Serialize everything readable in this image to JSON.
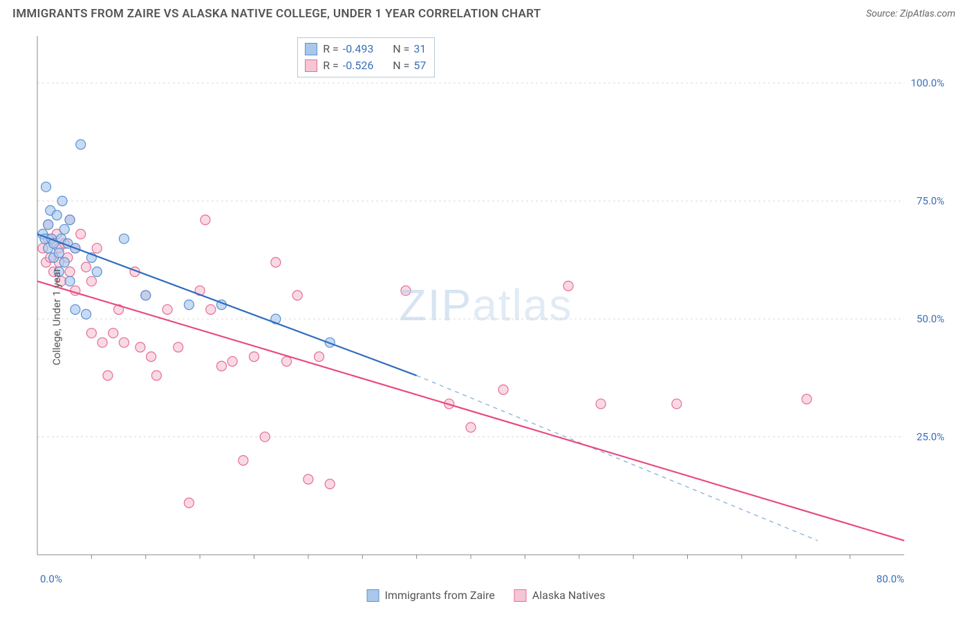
{
  "title": "IMMIGRANTS FROM ZAIRE VS ALASKA NATIVE COLLEGE, UNDER 1 YEAR CORRELATION CHART",
  "source": "Source: ZipAtlas.com",
  "watermark": "ZIPatlas",
  "ylabel": "College, Under 1 year",
  "chart": {
    "type": "scatter-with-regression",
    "background_color": "#ffffff",
    "grid_color": "#d9d9d9",
    "axis_color": "#888888",
    "xlim": [
      0,
      80
    ],
    "ylim": [
      0,
      110
    ],
    "y_ticks": [
      25,
      50,
      75,
      100
    ],
    "y_tick_labels": [
      "25.0%",
      "50.0%",
      "75.0%",
      "100.0%"
    ],
    "x_min_label": "0.0%",
    "x_max_label": "80.0%",
    "x_minor_ticks": [
      5,
      10,
      15,
      20,
      25,
      30,
      35,
      40,
      45,
      50,
      55,
      60,
      65,
      70,
      75
    ],
    "label_color": "#3b6fb6",
    "label_fontsize": 15,
    "marker_radius": 7,
    "marker_stroke_width": 1.2,
    "line_width": 2.2,
    "series": [
      {
        "name": "Immigrants from Zaire",
        "fill": "#a9c7eb",
        "stroke": "#5a8fd6",
        "line_color": "#2e6bc0",
        "dash_color": "#8fb3dd",
        "R": "-0.493",
        "N": "31",
        "points": [
          [
            0.5,
            68
          ],
          [
            0.7,
            67
          ],
          [
            0.8,
            78
          ],
          [
            1.0,
            70
          ],
          [
            1.0,
            65
          ],
          [
            1.2,
            73
          ],
          [
            1.3,
            67
          ],
          [
            1.5,
            66
          ],
          [
            1.5,
            63
          ],
          [
            1.8,
            72
          ],
          [
            2.0,
            64
          ],
          [
            2.0,
            60
          ],
          [
            2.2,
            67
          ],
          [
            2.3,
            75
          ],
          [
            2.5,
            62
          ],
          [
            2.5,
            69
          ],
          [
            2.8,
            66
          ],
          [
            3.0,
            58
          ],
          [
            3.0,
            71
          ],
          [
            3.5,
            65
          ],
          [
            3.5,
            52
          ],
          [
            4.0,
            87
          ],
          [
            4.5,
            51
          ],
          [
            5.0,
            63
          ],
          [
            5.5,
            60
          ],
          [
            8.0,
            67
          ],
          [
            10.0,
            55
          ],
          [
            14.0,
            53
          ],
          [
            17.0,
            53
          ],
          [
            22.0,
            50
          ],
          [
            27.0,
            45
          ]
        ],
        "reg_solid": {
          "x1": 0,
          "y1": 68,
          "x2": 35,
          "y2": 38
        },
        "reg_dash": {
          "x1": 35,
          "y1": 38,
          "x2": 72,
          "y2": 3
        }
      },
      {
        "name": "Alaska Natives",
        "fill": "#f6c6d4",
        "stroke": "#e76b94",
        "line_color": "#e84a7f",
        "R": "-0.526",
        "N": "57",
        "points": [
          [
            0.5,
            65
          ],
          [
            0.8,
            62
          ],
          [
            1.0,
            67
          ],
          [
            1.0,
            70
          ],
          [
            1.2,
            63
          ],
          [
            1.5,
            66
          ],
          [
            1.5,
            60
          ],
          [
            1.8,
            68
          ],
          [
            2.0,
            65
          ],
          [
            2.0,
            62
          ],
          [
            2.2,
            58
          ],
          [
            2.5,
            66
          ],
          [
            2.8,
            63
          ],
          [
            3.0,
            71
          ],
          [
            3.0,
            60
          ],
          [
            3.5,
            65
          ],
          [
            3.5,
            56
          ],
          [
            4.0,
            68
          ],
          [
            4.5,
            61
          ],
          [
            5.0,
            47
          ],
          [
            5.0,
            58
          ],
          [
            5.5,
            65
          ],
          [
            6.0,
            45
          ],
          [
            6.5,
            38
          ],
          [
            7.0,
            47
          ],
          [
            7.5,
            52
          ],
          [
            8.0,
            45
          ],
          [
            9.0,
            60
          ],
          [
            9.5,
            44
          ],
          [
            10.0,
            55
          ],
          [
            10.5,
            42
          ],
          [
            11.0,
            38
          ],
          [
            12.0,
            52
          ],
          [
            13.0,
            44
          ],
          [
            14.0,
            11
          ],
          [
            15.0,
            56
          ],
          [
            15.5,
            71
          ],
          [
            16.0,
            52
          ],
          [
            17.0,
            40
          ],
          [
            18.0,
            41
          ],
          [
            19.0,
            20
          ],
          [
            20.0,
            42
          ],
          [
            21.0,
            25
          ],
          [
            22.0,
            62
          ],
          [
            23.0,
            41
          ],
          [
            24.0,
            55
          ],
          [
            25.0,
            16
          ],
          [
            26.0,
            42
          ],
          [
            27.0,
            15
          ],
          [
            34.0,
            56
          ],
          [
            38.0,
            32
          ],
          [
            40.0,
            27
          ],
          [
            43.0,
            35
          ],
          [
            49.0,
            57
          ],
          [
            52.0,
            32
          ],
          [
            59.0,
            32
          ],
          [
            71.0,
            33
          ]
        ],
        "reg_solid": {
          "x1": 0,
          "y1": 58,
          "x2": 80,
          "y2": 3
        }
      }
    ]
  },
  "legend": {
    "items": [
      {
        "label": "Immigrants from Zaire",
        "fill": "#a9c7eb",
        "stroke": "#5a8fd6"
      },
      {
        "label": "Alaska Natives",
        "fill": "#f6c6d4",
        "stroke": "#e76b94"
      }
    ]
  }
}
